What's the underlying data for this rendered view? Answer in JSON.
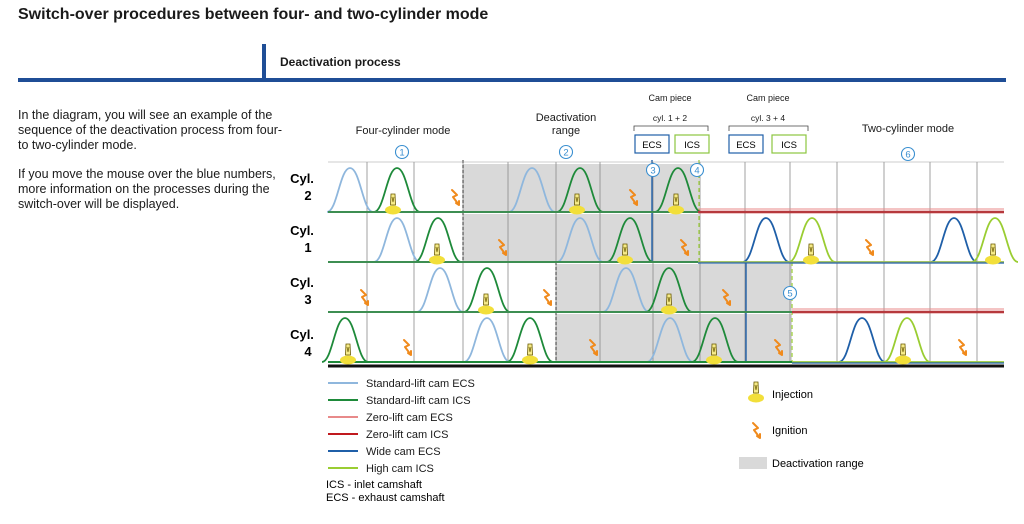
{
  "page": {
    "title": "Switch-over procedures between four- and two-cylinder mode",
    "section_tab": "Deactivation process",
    "intro_paragraphs": [
      "In the diagram, you will see an example of the sequence of the deactivation process from four- to two-cylinder mode.",
      "If you move the mouse over the blue numbers, more information on the processes during the switch-over will be displayed."
    ]
  },
  "diagram": {
    "headers": {
      "four_cyl": "Four-cylinder mode",
      "deact_line1": "Deactivation",
      "deact_line2": "range",
      "two_cyl": "Two-cylinder mode",
      "cam_piece_a": "Cam piece",
      "cam_piece_a_cyl": "cyl. 1 + 2",
      "cam_piece_b": "Cam piece",
      "cam_piece_b_cyl": "cyl. 3 + 4"
    },
    "shaft_boxes": [
      {
        "label": "ECS",
        "color": "#1f5fa8"
      },
      {
        "label": "ICS",
        "color": "#8cc63f"
      },
      {
        "label": "ECS",
        "color": "#1f5fa8"
      },
      {
        "label": "ICS",
        "color": "#8cc63f"
      }
    ],
    "step_markers": [
      "1",
      "2",
      "3",
      "4",
      "5",
      "6"
    ],
    "rows": [
      {
        "line1": "Cyl.",
        "line2": "2"
      },
      {
        "line1": "Cyl.",
        "line2": "1"
      },
      {
        "line1": "Cyl.",
        "line2": "3"
      },
      {
        "line1": "Cyl.",
        "line2": "4"
      }
    ],
    "legend": [
      {
        "label": "Standard-lift cam ECS",
        "color": "#8fb7dd"
      },
      {
        "label": "Standard-lift cam ICS",
        "color": "#1e8a3a"
      },
      {
        "label": "Zero-lift cam ECS",
        "color": "#e88a8a"
      },
      {
        "label": "Zero-lift cam ICS",
        "color": "#c0191e"
      },
      {
        "label": "Wide cam ECS",
        "color": "#1f5fa8"
      },
      {
        "label": "High cam ICS",
        "color": "#9acd32"
      }
    ],
    "abbreviations": [
      "ICS - inlet camshaft",
      "ECS - exhaust camshaft"
    ],
    "symbols": {
      "injection": "Injection",
      "ignition": "Ignition",
      "deactivation_range": "Deactivation range"
    },
    "colors": {
      "accent": "#1f4e96",
      "marker": "#3a8fd0",
      "deactivation_fill": "#d9d9d9",
      "injection": "#f2df3a",
      "ignition": "#f08a1c"
    }
  }
}
